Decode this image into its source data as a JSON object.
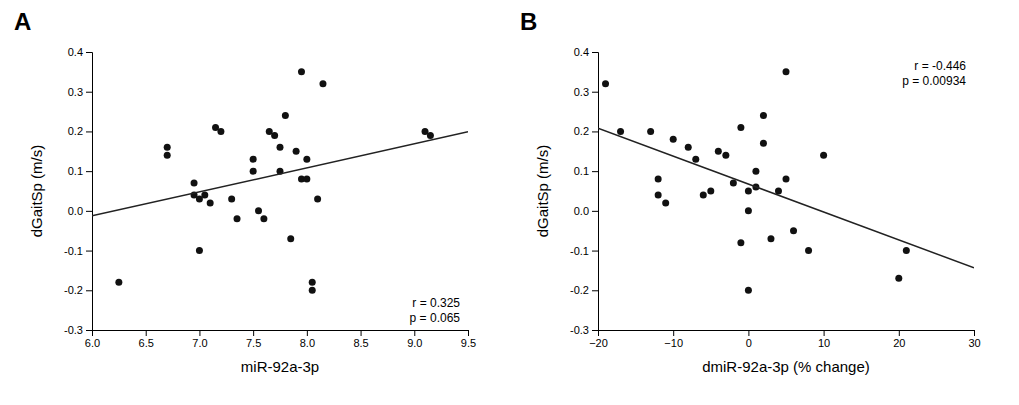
{
  "chart_data": [
    {
      "type": "scatter",
      "title": "A",
      "xlabel": "miR-92a-3p",
      "ylabel": "dGaitSp (m/s)",
      "annotations": [
        "r = 0.325",
        "p = 0.065"
      ],
      "series": [
        {
          "type": "scatter",
          "marker": "circle",
          "color": "#111111",
          "x": [
            6.25,
            6.7,
            6.7,
            6.95,
            6.95,
            7.0,
            7.0,
            7.05,
            7.1,
            7.15,
            7.2,
            7.3,
            7.35,
            7.5,
            7.5,
            7.55,
            7.6,
            7.65,
            7.7,
            7.75,
            7.75,
            7.8,
            7.85,
            7.9,
            7.95,
            7.95,
            8.0,
            8.0,
            8.05,
            8.05,
            8.1,
            8.15,
            9.1,
            9.15
          ],
          "values": [
            -0.18,
            0.16,
            0.14,
            0.07,
            0.04,
            0.03,
            -0.1,
            0.04,
            0.02,
            0.21,
            0.2,
            0.03,
            -0.02,
            0.13,
            0.1,
            0.0,
            -0.02,
            0.2,
            0.19,
            0.1,
            0.16,
            0.24,
            -0.07,
            0.15,
            0.35,
            0.08,
            0.13,
            0.08,
            -0.18,
            -0.2,
            0.03,
            0.32,
            0.2,
            0.19
          ]
        },
        {
          "type": "line",
          "line_style": "solid",
          "color": "#222222",
          "x": [
            6.0,
            9.5
          ],
          "values": [
            -0.0126,
            0.199
          ]
        }
      ],
      "xlim": [
        6.0,
        9.5
      ],
      "ylim": [
        -0.3,
        0.4
      ],
      "xticks": [
        {
          "value": 6.0,
          "label": "6.0"
        },
        6.5,
        {
          "value": 7.0,
          "label": "7.0"
        },
        7.5,
        {
          "value": 8.0,
          "label": "8.0"
        },
        8.5,
        {
          "value": 9.0,
          "label": "9.0"
        },
        9.5
      ],
      "yticks": [
        -0.3,
        -0.2,
        -0.1,
        {
          "value": 0.0,
          "label": "0.0"
        },
        0.1,
        0.2,
        0.3,
        0.4
      ],
      "grid": false
    },
    {
      "type": "scatter",
      "title": "B",
      "xlabel": "dmiR-92a-3p (% change)",
      "ylabel": "dGaitSp (m/s)",
      "annotations": [
        "r = -0.446",
        "p = 0.00934"
      ],
      "series": [
        {
          "type": "scatter",
          "marker": "circle",
          "color": "#111111",
          "x": [
            -19,
            -17,
            -13,
            -12,
            -12,
            -11,
            -10,
            -8,
            -7,
            -6,
            -5,
            -4,
            -3,
            -2,
            -1,
            -1,
            0,
            0,
            0,
            1,
            1,
            2,
            2,
            3,
            4,
            5,
            5,
            6,
            8,
            10,
            20,
            21
          ],
          "values": [
            0.32,
            0.2,
            0.2,
            0.04,
            0.08,
            0.02,
            0.18,
            0.16,
            0.13,
            0.04,
            0.05,
            0.15,
            0.14,
            0.07,
            0.21,
            -0.08,
            0.0,
            0.05,
            -0.2,
            0.1,
            0.06,
            0.17,
            0.24,
            -0.07,
            0.05,
            0.08,
            0.35,
            -0.05,
            -0.1,
            0.14,
            -0.17,
            -0.1
          ]
        },
        {
          "type": "line",
          "line_style": "solid",
          "color": "#222222",
          "x": [
            -20,
            30
          ],
          "values": [
            0.208,
            -0.1434
          ]
        }
      ],
      "xlim": [
        -20,
        30
      ],
      "ylim": [
        -0.3,
        0.4
      ],
      "xticks": [
        {
          "value": -20,
          "label": "−20"
        },
        {
          "value": -10,
          "label": "−10"
        },
        0,
        10,
        20,
        30
      ],
      "yticks": [
        -0.3,
        -0.2,
        -0.1,
        {
          "value": 0.0,
          "label": "0.0"
        },
        0.1,
        0.2,
        0.3,
        0.4
      ],
      "grid": false
    }
  ]
}
